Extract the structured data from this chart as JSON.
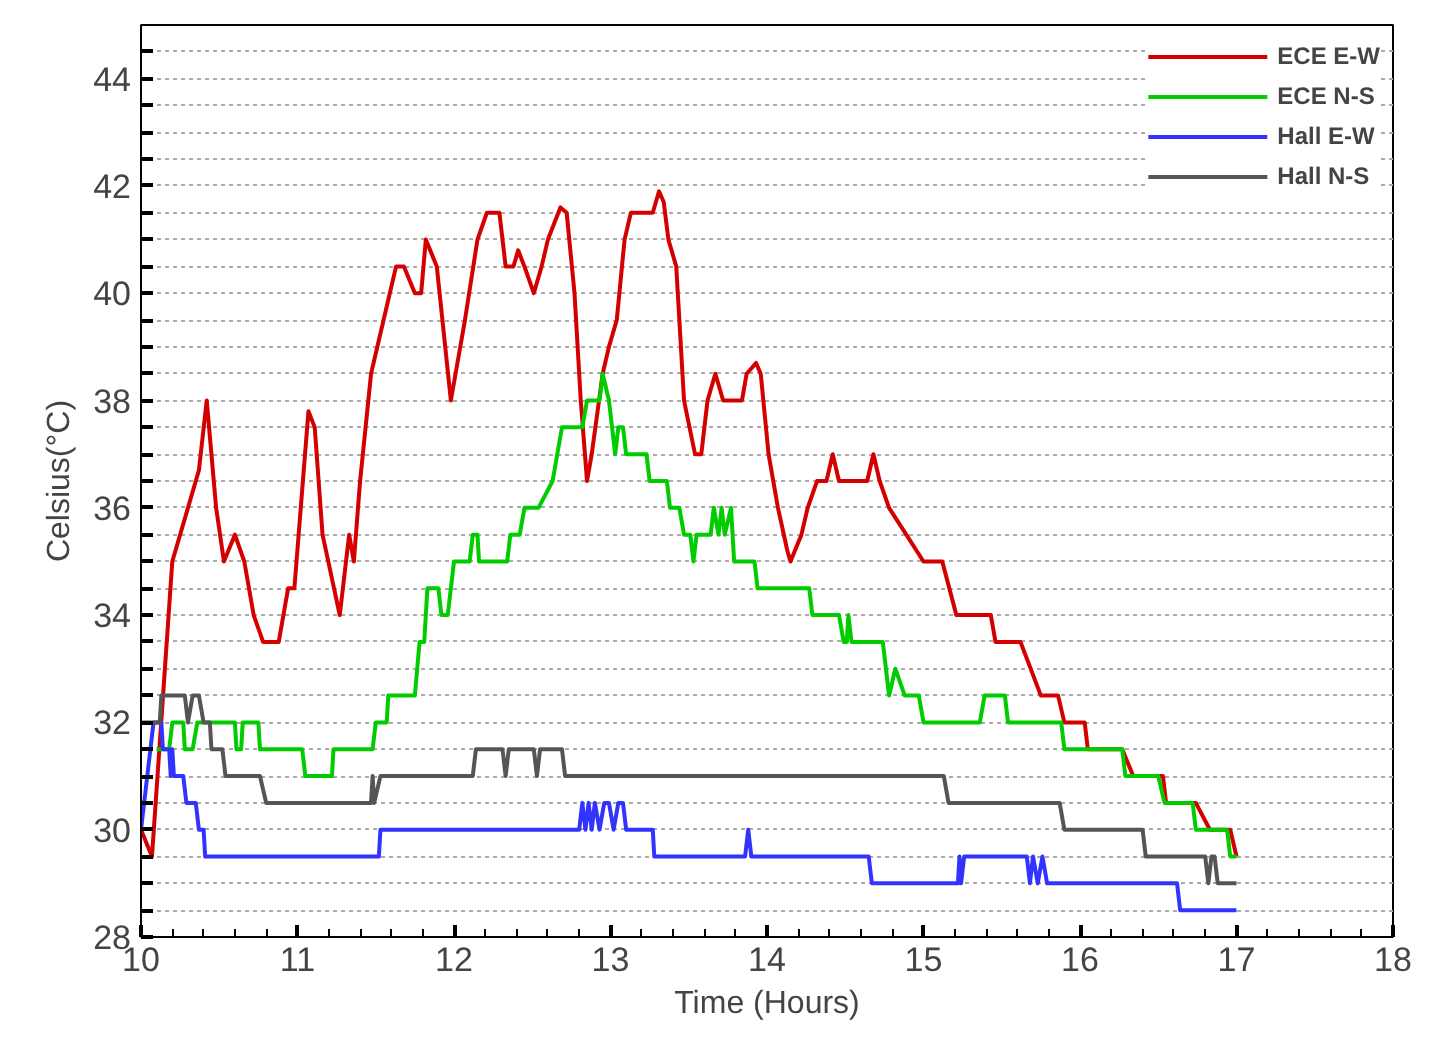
{
  "chart_data": {
    "type": "line",
    "xlabel": "Time (Hours)",
    "ylabel": "Celsius(°C)",
    "xlim": [
      10,
      18
    ],
    "ylim": [
      28,
      45
    ],
    "xticks": [
      10,
      11,
      12,
      13,
      14,
      15,
      16,
      17,
      18
    ],
    "yticks": [
      28,
      {
        "value": 28.5,
        "label": null
      },
      {
        "value": 29,
        "label": null
      },
      {
        "value": 29.5,
        "label": null
      },
      30,
      {
        "value": 30.5,
        "label": null
      },
      {
        "value": 31,
        "label": null
      },
      {
        "value": 31.5,
        "label": null
      },
      32,
      {
        "value": 32.5,
        "label": null
      },
      {
        "value": 33,
        "label": null
      },
      {
        "value": 33.5,
        "label": null
      },
      34,
      {
        "value": 34.5,
        "label": null
      },
      {
        "value": 35,
        "label": null
      },
      {
        "value": 35.5,
        "label": null
      },
      36,
      {
        "value": 36.5,
        "label": null
      },
      {
        "value": 37,
        "label": null
      },
      {
        "value": 37.5,
        "label": null
      },
      38,
      {
        "value": 38.5,
        "label": null
      },
      {
        "value": 39,
        "label": null
      },
      {
        "value": 39.5,
        "label": null
      },
      40,
      {
        "value": 40.5,
        "label": null
      },
      {
        "value": 41,
        "label": null
      },
      {
        "value": 41.5,
        "label": null
      },
      42,
      {
        "value": 42.5,
        "label": null
      },
      {
        "value": 43,
        "label": null
      },
      {
        "value": 43.5,
        "label": null
      },
      44,
      {
        "value": 44.5,
        "label": null
      }
    ],
    "grid": "y",
    "legend": "top right",
    "line_style": "solid",
    "series": [
      {
        "name": "ECE E-W",
        "color": "#d40000",
        "x": [
          10.0,
          10.07,
          10.2,
          10.3,
          10.37,
          10.42,
          10.48,
          10.53,
          10.6,
          10.66,
          10.72,
          10.78,
          10.88,
          10.94,
          10.98,
          11.07,
          11.11,
          11.16,
          11.27,
          11.33,
          11.36,
          11.4,
          11.47,
          11.55,
          11.63,
          11.68,
          11.75,
          11.79,
          11.82,
          11.89,
          11.98,
          12.07,
          12.15,
          12.21,
          12.29,
          12.33,
          12.38,
          12.41,
          12.45,
          12.51,
          12.56,
          12.6,
          12.68,
          12.72,
          12.77,
          12.81,
          12.85,
          12.88,
          12.95,
          12.99,
          13.04,
          13.09,
          13.13,
          13.27,
          13.31,
          13.34,
          13.37,
          13.42,
          13.47,
          13.54,
          13.58,
          13.62,
          13.67,
          13.72,
          13.84,
          13.87,
          13.93,
          13.96,
          14.01,
          14.07,
          14.13,
          14.15,
          14.22,
          14.26,
          14.32,
          14.38,
          14.42,
          14.46,
          14.64,
          14.68,
          14.72,
          14.78,
          14.89,
          15.0,
          15.12,
          15.21,
          15.43,
          15.46,
          15.62,
          15.75,
          15.86,
          15.9,
          16.03,
          16.05,
          16.27,
          16.34,
          16.53,
          16.55,
          16.74,
          16.83,
          16.96,
          17.0
        ],
        "values": [
          30,
          29.5,
          35,
          36,
          36.7,
          38,
          36,
          35,
          35.5,
          35,
          34,
          33.5,
          33.5,
          34.5,
          34.5,
          37.8,
          37.5,
          35.5,
          34,
          35.5,
          35,
          36.5,
          38.5,
          39.5,
          40.5,
          40.5,
          40,
          40,
          41,
          40.5,
          38,
          39.5,
          41,
          41.5,
          41.5,
          40.5,
          40.5,
          40.8,
          40.5,
          40,
          40.5,
          41,
          41.6,
          41.5,
          40,
          38,
          36.5,
          37,
          38.5,
          39,
          39.5,
          41,
          41.5,
          41.5,
          41.9,
          41.7,
          41,
          40.5,
          38,
          37,
          37,
          38,
          38.5,
          38,
          38,
          38.5,
          38.7,
          38.5,
          37,
          36,
          35.2,
          35,
          35.5,
          36,
          36.5,
          36.5,
          37,
          36.5,
          36.5,
          37,
          36.5,
          36,
          35.5,
          35,
          35,
          34,
          34,
          33.5,
          33.5,
          32.5,
          32.5,
          32,
          32,
          31.5,
          31.5,
          31,
          31,
          30.5,
          30.5,
          30,
          30,
          29.5
        ]
      },
      {
        "name": "ECE N-S",
        "color": "#00cc00",
        "x": [
          10.1,
          10.18,
          10.2,
          10.27,
          10.28,
          10.33,
          10.36,
          10.6,
          10.61,
          10.64,
          10.65,
          10.75,
          10.76,
          11.03,
          11.05,
          11.22,
          11.23,
          11.48,
          11.5,
          11.57,
          11.58,
          11.75,
          11.78,
          11.81,
          11.83,
          11.9,
          11.92,
          11.96,
          12.0,
          12.1,
          12.12,
          12.15,
          12.16,
          12.34,
          12.36,
          12.42,
          12.45,
          12.54,
          12.63,
          12.69,
          12.82,
          12.85,
          12.93,
          12.95,
          12.99,
          13.03,
          13.05,
          13.08,
          13.1,
          13.23,
          13.25,
          13.36,
          13.38,
          13.44,
          13.47,
          13.51,
          13.53,
          13.55,
          13.64,
          13.66,
          13.69,
          13.71,
          13.73,
          13.77,
          13.79,
          13.92,
          13.94,
          14.27,
          14.29,
          14.46,
          14.49,
          14.51,
          14.52,
          14.54,
          14.74,
          14.76,
          14.78,
          14.82,
          14.88,
          14.97,
          15.0,
          15.36,
          15.39,
          15.52,
          15.54,
          15.88,
          15.9,
          16.27,
          16.29,
          16.5,
          16.54,
          16.72,
          16.74,
          16.94,
          16.96,
          17.0
        ],
        "values": [
          31.5,
          31.5,
          32,
          32,
          31.5,
          31.5,
          32,
          32,
          31.5,
          31.5,
          32,
          32,
          31.5,
          31.5,
          31,
          31,
          31.5,
          31.5,
          32,
          32,
          32.5,
          32.5,
          33.5,
          33.5,
          34.5,
          34.5,
          34,
          34,
          35,
          35,
          35.5,
          35.5,
          35,
          35,
          35.5,
          35.5,
          36,
          36,
          36.5,
          37.5,
          37.5,
          38,
          38,
          38.5,
          38,
          37,
          37.5,
          37.5,
          37,
          37,
          36.5,
          36.5,
          36,
          36,
          35.5,
          35.5,
          35,
          35.5,
          35.5,
          36,
          35.5,
          36,
          35.5,
          36,
          35,
          35,
          34.5,
          34.5,
          34,
          34,
          33.5,
          33.5,
          34,
          33.5,
          33.5,
          33,
          32.5,
          33,
          32.5,
          32.5,
          32,
          32,
          32.5,
          32.5,
          32,
          32,
          31.5,
          31.5,
          31,
          31,
          30.5,
          30.5,
          30,
          30,
          29.5,
          29.5
        ]
      },
      {
        "name": "Hall E-W",
        "color": "#3333ff",
        "x": [
          10.0,
          10.08,
          10.13,
          10.14,
          10.18,
          10.19,
          10.2,
          10.21,
          10.27,
          10.29,
          10.35,
          10.37,
          10.4,
          10.41,
          11.52,
          11.53,
          12.8,
          12.82,
          12.84,
          12.86,
          12.88,
          12.9,
          12.93,
          12.96,
          12.99,
          13.02,
          13.05,
          13.08,
          13.1,
          13.12,
          13.27,
          13.28,
          13.86,
          13.88,
          13.9,
          14.65,
          14.67,
          15.22,
          15.23,
          15.24,
          15.26,
          15.27,
          15.3,
          15.66,
          15.68,
          15.7,
          15.73,
          15.76,
          15.79,
          15.82,
          16.62,
          16.64,
          17.0
        ],
        "values": [
          30,
          32,
          32,
          31.5,
          31.5,
          31,
          31.5,
          31,
          31,
          30.5,
          30.5,
          30,
          30,
          29.5,
          29.5,
          30,
          30,
          30.5,
          30,
          30.5,
          30,
          30.5,
          30,
          30.5,
          30.5,
          30,
          30.5,
          30.5,
          30,
          30,
          30,
          29.5,
          29.5,
          30,
          29.5,
          29.5,
          29,
          29,
          29.5,
          29,
          29.5,
          29.5,
          29.5,
          29.5,
          29,
          29.5,
          29,
          29.5,
          29,
          29,
          29,
          28.5,
          28.5
        ]
      },
      {
        "name": "Hall N-S",
        "color": "#555555",
        "x": [
          10.0,
          10.12,
          10.13,
          10.28,
          10.3,
          10.33,
          10.37,
          10.4,
          10.44,
          10.45,
          10.52,
          10.54,
          10.76,
          10.8,
          11.47,
          11.48,
          11.49,
          11.53,
          12.12,
          12.14,
          12.31,
          12.33,
          12.35,
          12.51,
          12.53,
          12.55,
          12.69,
          12.71,
          15.13,
          15.16,
          15.87,
          15.9,
          16.4,
          16.42,
          16.8,
          16.82,
          16.84,
          16.86,
          16.88,
          17.0
        ],
        "values": [
          32,
          32,
          32.5,
          32.5,
          32,
          32.5,
          32.5,
          32,
          32,
          31.5,
          31.5,
          31,
          31,
          30.5,
          30.5,
          31,
          30.5,
          31,
          31,
          31.5,
          31.5,
          31,
          31.5,
          31.5,
          31,
          31.5,
          31.5,
          31,
          31,
          30.5,
          30.5,
          30,
          30,
          29.5,
          29.5,
          29,
          29.5,
          29.5,
          29,
          29
        ]
      }
    ]
  }
}
